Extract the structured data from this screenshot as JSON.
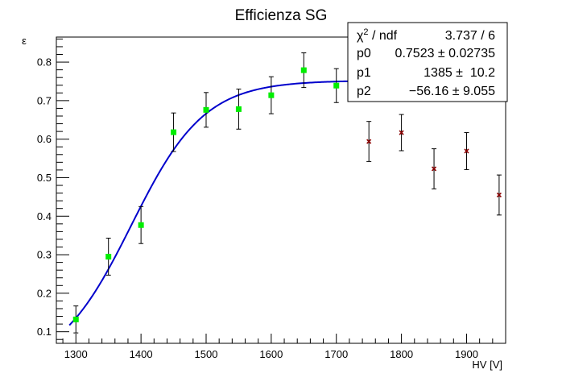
{
  "chart_data": {
    "type": "scatter",
    "title": "Efficienza SG",
    "xlabel": "HV [V]",
    "ylabel": "ε",
    "xlim": [
      1270,
      1960
    ],
    "ylim": [
      0.07,
      0.865
    ],
    "xticks": [
      1300,
      1400,
      1500,
      1600,
      1700,
      1800,
      1900
    ],
    "yticks": [
      0.1,
      0.2,
      0.3,
      0.4,
      0.5,
      0.6,
      0.7,
      0.8
    ],
    "grid": false,
    "series": [
      {
        "marker": "square",
        "color": "#00ee00",
        "points": [
          {
            "x": 1300,
            "y": 0.132,
            "err": 0.035
          },
          {
            "x": 1350,
            "y": 0.295,
            "err": 0.048
          },
          {
            "x": 1400,
            "y": 0.377,
            "err": 0.048
          },
          {
            "x": 1450,
            "y": 0.618,
            "err": 0.05
          },
          {
            "x": 1500,
            "y": 0.676,
            "err": 0.045
          },
          {
            "x": 1550,
            "y": 0.678,
            "err": 0.052
          },
          {
            "x": 1600,
            "y": 0.714,
            "err": 0.048
          },
          {
            "x": 1650,
            "y": 0.779,
            "err": 0.045
          },
          {
            "x": 1700,
            "y": 0.739,
            "err": 0.044
          }
        ]
      },
      {
        "marker": "cross",
        "color": "#8b0000",
        "points": [
          {
            "x": 1750,
            "y": 0.594,
            "err": 0.052
          },
          {
            "x": 1800,
            "y": 0.617,
            "err": 0.047
          },
          {
            "x": 1850,
            "y": 0.523,
            "err": 0.052
          },
          {
            "x": 1900,
            "y": 0.569,
            "err": 0.048
          },
          {
            "x": 1950,
            "y": 0.455,
            "err": 0.052
          }
        ]
      }
    ],
    "fit": {
      "color": "#0000cc",
      "x_range": [
        1290,
        1750
      ],
      "p0": 0.7523,
      "p1": 1385,
      "p2": -56.16
    },
    "stats": {
      "chi2_label": "χ",
      "chi2_sup": "2",
      "chi2_suffix": " / ndf",
      "chi2_value": "3.737 / 6",
      "rows": [
        {
          "label": "p0",
          "value": "0.7523 ± 0.02735"
        },
        {
          "label": "p1",
          "value": "1385 ±  10.2"
        },
        {
          "label": "p2",
          "value": "−56.16 ± 9.055"
        }
      ]
    }
  }
}
